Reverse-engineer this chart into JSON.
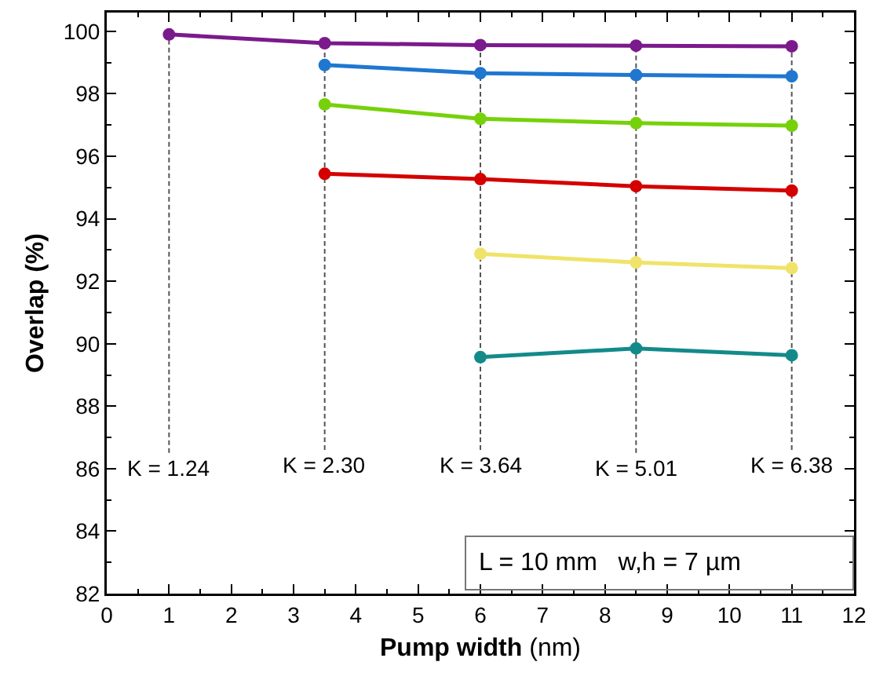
{
  "chart_data": {
    "type": "line",
    "xlabel": "Pump width (nm)",
    "ylabel": "Overlap (%)",
    "xlim": [
      0,
      12
    ],
    "xticks": [
      0,
      1,
      2,
      3,
      4,
      5,
      6,
      7,
      8,
      9,
      10,
      11,
      12
    ],
    "ylim": [
      82,
      100.6
    ],
    "yticks": [
      82,
      84,
      86,
      88,
      90,
      92,
      94,
      96,
      98,
      100
    ],
    "grid": false,
    "marker": "circle",
    "line_style": "solid",
    "series": [
      {
        "color": "#7b1a8c",
        "x": [
          1,
          3.5,
          6,
          8.5,
          11
        ],
        "values": [
          99.9,
          99.62,
          99.56,
          99.54,
          99.52
        ]
      },
      {
        "color": "#1f77d0",
        "x": [
          3.5,
          6,
          8.5,
          11
        ],
        "values": [
          98.92,
          98.66,
          98.6,
          98.56
        ]
      },
      {
        "color": "#76d10a",
        "x": [
          3.5,
          6,
          8.5,
          11
        ],
        "values": [
          97.66,
          97.2,
          97.06,
          96.98
        ]
      },
      {
        "color": "#d40000",
        "x": [
          3.5,
          6,
          8.5,
          11
        ],
        "values": [
          95.44,
          95.27,
          95.04,
          94.9
        ]
      },
      {
        "color": "#f0e36a",
        "x": [
          6,
          8.5,
          11
        ],
        "values": [
          92.88,
          92.6,
          92.42
        ]
      },
      {
        "color": "#138a8a",
        "x": [
          6,
          8.5,
          11
        ],
        "values": [
          89.57,
          89.85,
          89.63
        ]
      }
    ],
    "ref_lines": [
      {
        "axis": "x",
        "value": 1,
        "line_style": "dashed",
        "color": "#555555"
      },
      {
        "axis": "x",
        "value": 3.5,
        "line_style": "dashed",
        "color": "#555555"
      },
      {
        "axis": "x",
        "value": 6,
        "line_style": "dashed",
        "color": "#555555"
      },
      {
        "axis": "x",
        "value": 8.5,
        "line_style": "dashed",
        "color": "#555555"
      },
      {
        "axis": "x",
        "value": 11,
        "line_style": "dashed",
        "color": "#555555"
      }
    ],
    "annotations": [
      {
        "text": "K = 1.24",
        "x": 1,
        "y": 86
      },
      {
        "text": "K = 2.30",
        "x": 3.5,
        "y": 86.1
      },
      {
        "text": "K = 3.64",
        "x": 6,
        "y": 86.1
      },
      {
        "text": "K = 5.01",
        "x": 8.5,
        "y": 86
      },
      {
        "text": "K = 6.38",
        "x": 11,
        "y": 86.1
      },
      "L = 10 mm   w,h = 7 µm"
    ]
  }
}
